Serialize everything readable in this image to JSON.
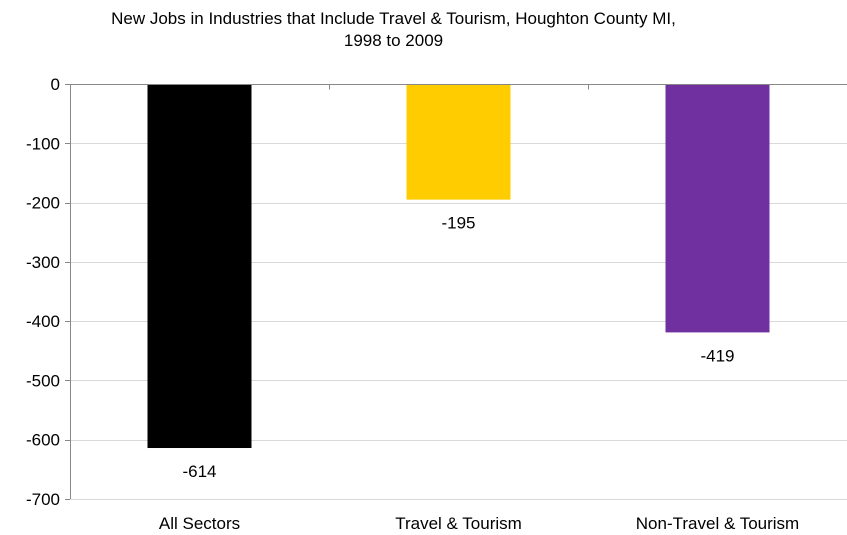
{
  "chart_data": {
    "type": "bar",
    "title_lines": [
      "New Jobs in Industries that Include Travel & Tourism, Houghton County MI,",
      "1998 to 2009"
    ],
    "categories": [
      "All Sectors",
      "Travel & Tourism",
      "Non-Travel & Tourism"
    ],
    "values": [
      -614,
      -195,
      -419
    ],
    "data_labels": [
      "-614",
      "-195",
      "-419"
    ],
    "colors": [
      "#000000",
      "#FFCC00",
      "#7030A0"
    ],
    "ylim": [
      -700,
      0
    ],
    "yticks": [
      0,
      -100,
      -200,
      -300,
      -400,
      -500,
      -600,
      -700
    ],
    "ytick_labels": [
      "0",
      "-100",
      "-200",
      "-300",
      "-400",
      "-500",
      "-600",
      "-700"
    ],
    "grid": true,
    "legend": "none"
  }
}
